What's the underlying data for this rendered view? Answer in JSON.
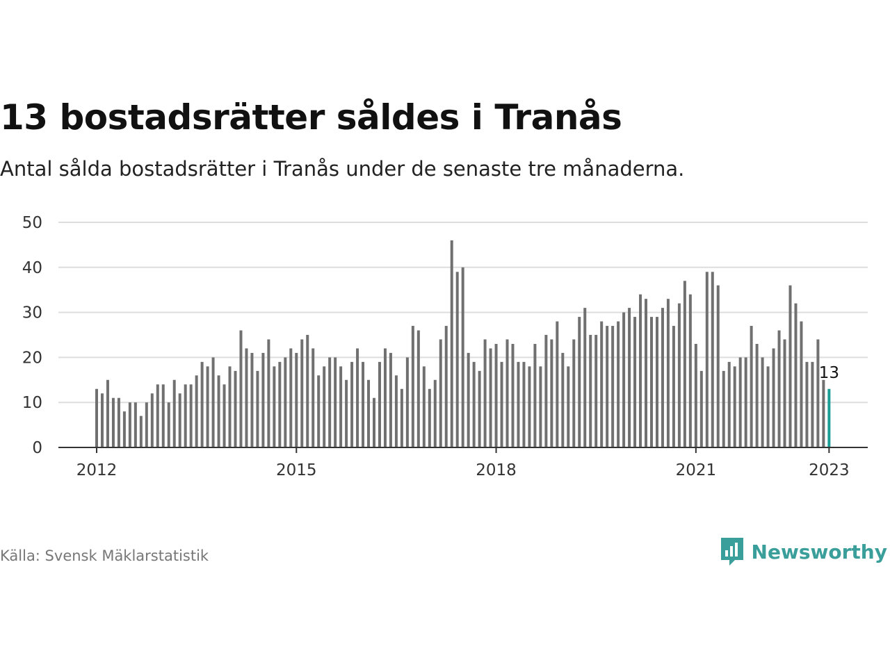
{
  "header": {
    "title": "13 bostadsrätter såldes i Tranås",
    "subtitle": "Antal sålda bostadsrätter i Tranås under de senaste tre månaderna."
  },
  "footer": {
    "source": "Källa: Svensk Mäklarstatistik",
    "brand": "Newsworthy",
    "brand_icon": "newsworthy-logo-icon"
  },
  "colors": {
    "bar": "#707070",
    "highlight": "#1a9e96",
    "grid": "#dddddd",
    "axis": "#333333",
    "brand": "#3a9f9a"
  },
  "chart_data": {
    "type": "bar",
    "title": "13 bostadsrätter såldes i Tranås",
    "xlabel": "",
    "ylabel": "",
    "ylim": [
      0,
      50
    ],
    "yticks": [
      0,
      10,
      20,
      30,
      40,
      50
    ],
    "xticks": [
      "2012",
      "2015",
      "2018",
      "2021",
      "2023"
    ],
    "grid": true,
    "start": "2012-01",
    "end": "2023-01",
    "values": [
      13,
      12,
      15,
      11,
      11,
      8,
      10,
      10,
      7,
      10,
      12,
      14,
      14,
      10,
      15,
      12,
      14,
      14,
      16,
      19,
      18,
      20,
      16,
      14,
      18,
      17,
      26,
      22,
      21,
      17,
      21,
      24,
      18,
      19,
      20,
      22,
      21,
      24,
      25,
      22,
      16,
      18,
      20,
      20,
      18,
      15,
      19,
      22,
      19,
      15,
      11,
      19,
      22,
      21,
      16,
      13,
      20,
      27,
      26,
      18,
      13,
      15,
      24,
      27,
      46,
      39,
      40,
      21,
      19,
      17,
      24,
      22,
      23,
      19,
      24,
      23,
      19,
      19,
      18,
      23,
      18,
      25,
      24,
      28,
      21,
      18,
      24,
      29,
      31,
      25,
      25,
      28,
      27,
      27,
      28,
      30,
      31,
      29,
      34,
      33,
      29,
      29,
      31,
      33,
      27,
      32,
      37,
      34,
      23,
      17,
      39,
      39,
      36,
      17,
      19,
      18,
      20,
      20,
      27,
      23,
      20,
      18,
      22,
      26,
      24,
      36,
      32,
      28,
      19,
      19,
      24,
      15,
      13
    ],
    "highlight_last": true,
    "annotation": {
      "label": "13",
      "month": "2023-01",
      "value": 13
    }
  }
}
